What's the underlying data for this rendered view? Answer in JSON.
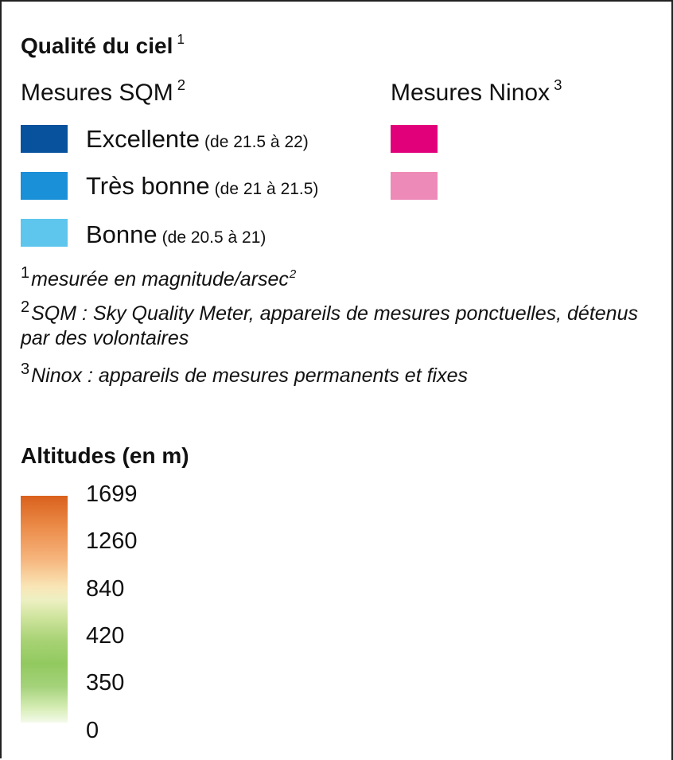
{
  "sky_quality": {
    "title": "Qualité du ciel",
    "title_ref": "1",
    "sqm_header": "Mesures SQM",
    "sqm_ref": "2",
    "ninox_header": "Mesures Ninox",
    "ninox_ref": "3",
    "sqm_classes": [
      {
        "label": "Excellente",
        "range": "(de 21.5 à 22)",
        "color": "#08519c"
      },
      {
        "label": "Très bonne",
        "range": "(de 21 à 21.5)",
        "color": "#1a90d8"
      },
      {
        "label": "Bonne",
        "range": "(de 20.5 à 21)",
        "color": "#5ec5ec"
      }
    ],
    "ninox_classes": [
      {
        "color": "#e2007a"
      },
      {
        "color": "#ee8ab8"
      }
    ]
  },
  "notes": [
    {
      "num": "1",
      "text": "mesurée en magnitude/arsec",
      "sup": "2"
    },
    {
      "num": "2",
      "text": "SQM : Sky Quality Meter, appareils de mesures ponctuelles, détenus par des volontaires"
    },
    {
      "num": "3",
      "text": "Ninox : appareils de mesures permanents et fixes"
    }
  ],
  "altitude": {
    "title": "Altitudes (en m)",
    "ticks": [
      "1699",
      "1260",
      "840",
      "420",
      "350",
      "0"
    ]
  }
}
